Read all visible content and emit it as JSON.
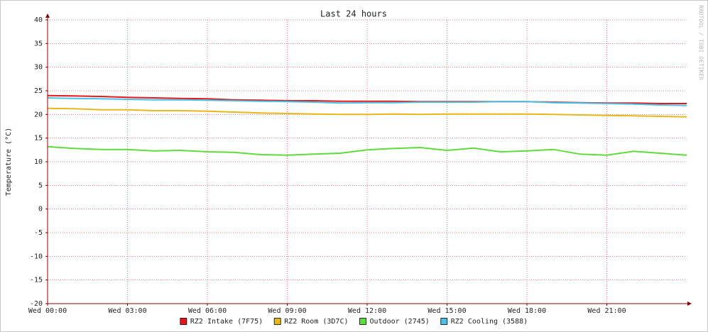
{
  "chart_data": {
    "type": "line",
    "title": "Last 24 hours",
    "ylabel": "Temperature (°C)",
    "watermark": "RRDTOOL / TOBI OETIKER",
    "x": [
      0,
      1,
      2,
      3,
      4,
      5,
      6,
      7,
      8,
      9,
      10,
      11,
      12,
      13,
      14,
      15,
      16,
      17,
      18,
      19,
      20,
      21,
      22,
      23,
      24
    ],
    "xlim": [
      0,
      24
    ],
    "xticks": [
      {
        "value": 0,
        "label": "Wed 00:00"
      },
      {
        "value": 3,
        "label": "Wed 03:00"
      },
      {
        "value": 6,
        "label": "Wed 06:00"
      },
      {
        "value": 9,
        "label": "Wed 09:00"
      },
      {
        "value": 12,
        "label": "Wed 12:00"
      },
      {
        "value": 15,
        "label": "Wed 15:00"
      },
      {
        "value": 18,
        "label": "Wed 18:00"
      },
      {
        "value": 21,
        "label": "Wed 21:00"
      }
    ],
    "ylim": [
      -20,
      40
    ],
    "yticks": [
      40,
      35,
      30,
      25,
      20,
      15,
      10,
      5,
      0,
      -5,
      -10,
      -15,
      -20
    ],
    "grid": true,
    "legend": "bottom",
    "series": [
      {
        "name": "RZ2 Intake (7F75)",
        "color": "#e8161b",
        "values": [
          24.0,
          23.9,
          23.8,
          23.6,
          23.5,
          23.4,
          23.3,
          23.1,
          23.0,
          22.9,
          22.9,
          22.8,
          22.8,
          22.8,
          22.7,
          22.7,
          22.7,
          22.7,
          22.7,
          22.6,
          22.5,
          22.4,
          22.4,
          22.3,
          22.3
        ]
      },
      {
        "name": "RZ2 Room (3D7C)",
        "color": "#e8b81a",
        "values": [
          21.3,
          21.2,
          21.0,
          21.0,
          20.8,
          20.8,
          20.7,
          20.5,
          20.3,
          20.2,
          20.1,
          20.0,
          20.0,
          20.1,
          20.0,
          20.1,
          20.1,
          20.1,
          20.1,
          20.0,
          19.9,
          19.8,
          19.7,
          19.6,
          19.5
        ]
      },
      {
        "name": "Outdoor (2745)",
        "color": "#5ddc3c",
        "values": [
          13.2,
          12.8,
          12.6,
          12.6,
          12.3,
          12.4,
          12.1,
          12.0,
          11.5,
          11.4,
          11.6,
          11.8,
          12.5,
          12.8,
          13.0,
          12.4,
          12.9,
          12.1,
          12.3,
          12.6,
          11.6,
          11.4,
          12.2,
          11.8,
          11.4
        ]
      },
      {
        "name": "RZ2 Cooling (3588)",
        "color": "#45c4e8",
        "values": [
          23.5,
          23.4,
          23.3,
          23.2,
          23.1,
          23.1,
          23.0,
          22.9,
          22.8,
          22.7,
          22.6,
          22.4,
          22.5,
          22.5,
          22.6,
          22.6,
          22.6,
          22.7,
          22.7,
          22.5,
          22.4,
          22.3,
          22.2,
          22.0,
          21.9
        ]
      }
    ]
  }
}
